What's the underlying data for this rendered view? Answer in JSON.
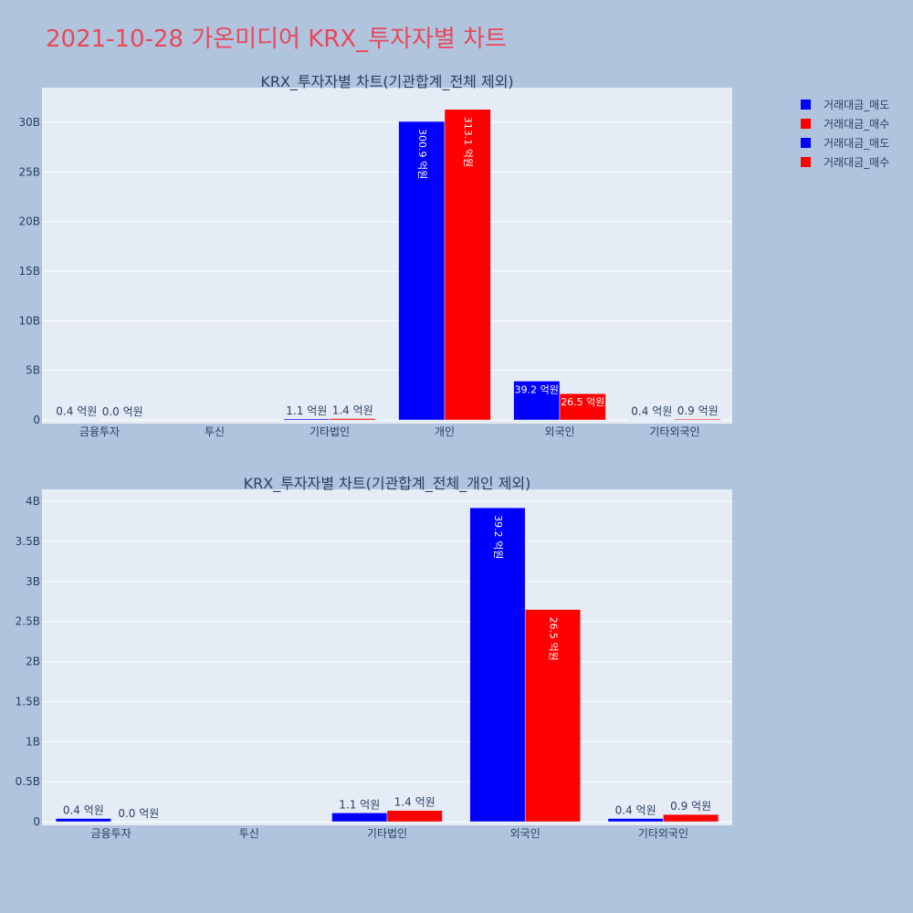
{
  "title": "2021-10-28 가온미디어 KRX_투자자별 차트",
  "legend": [
    {
      "label": "거래대금_매도",
      "color": "#0000ff"
    },
    {
      "label": "거래대금_매수",
      "color": "#ff0000"
    },
    {
      "label": "거래대금_매도",
      "color": "#0000ff"
    },
    {
      "label": "거래대금_매수",
      "color": "#ff0000"
    }
  ],
  "colors": {
    "sell": "#0000ff",
    "buy": "#ff0000",
    "plot_bg": "#e5ecf6",
    "page_bg": "#b0c4de",
    "title": "#e8485a"
  },
  "chart_data": [
    {
      "type": "bar",
      "title": "KRX_투자자별 차트(기관합계_전체 제외)",
      "categories": [
        "금융투자",
        "투신",
        "기타법인",
        "개인",
        "외국인",
        "기타외국인"
      ],
      "series": [
        {
          "name": "거래대금_매도",
          "values": [
            40000000,
            0,
            110000000,
            30090000000,
            3920000000,
            40000000
          ],
          "labels": [
            "0.4 억원",
            "",
            "1.1 억원",
            "300.9 억원",
            "39.2 억원",
            "0.4 억원"
          ]
        },
        {
          "name": "거래대금_매수",
          "values": [
            0,
            0,
            140000000,
            31310000000,
            2650000000,
            90000000
          ],
          "labels": [
            "0.0 억원",
            "",
            "1.4 억원",
            "313.1 억원",
            "26.5 억원",
            "0.9 억원"
          ]
        }
      ],
      "ylim": [
        0,
        33500000000
      ],
      "yticks": [
        0,
        5000000000,
        10000000000,
        15000000000,
        20000000000,
        25000000000,
        30000000000
      ],
      "ytick_labels": [
        "0",
        "5B",
        "10B",
        "15B",
        "20B",
        "25B",
        "30B"
      ],
      "grid": true
    },
    {
      "type": "bar",
      "title": "KRX_투자자별 차트(기관합계_전체_개인 제외)",
      "categories": [
        "금융투자",
        "투신",
        "기타법인",
        "외국인",
        "기타외국인"
      ],
      "series": [
        {
          "name": "거래대금_매도",
          "values": [
            40000000,
            0,
            110000000,
            3920000000,
            40000000
          ],
          "labels": [
            "0.4 억원",
            "",
            "1.1 억원",
            "39.2 억원",
            "0.4 억원"
          ]
        },
        {
          "name": "거래대금_매수",
          "values": [
            0,
            0,
            140000000,
            2650000000,
            90000000
          ],
          "labels": [
            "0.0 억원",
            "",
            "1.4 억원",
            "26.5 억원",
            "0.9 억원"
          ]
        }
      ],
      "ylim": [
        0,
        4150000000
      ],
      "yticks": [
        0,
        500000000,
        1000000000,
        1500000000,
        2000000000,
        2500000000,
        3000000000,
        3500000000,
        4000000000
      ],
      "ytick_labels": [
        "0",
        "0.5B",
        "1B",
        "1.5B",
        "2B",
        "2.5B",
        "3B",
        "3.5B",
        "4B"
      ],
      "grid": true
    }
  ]
}
